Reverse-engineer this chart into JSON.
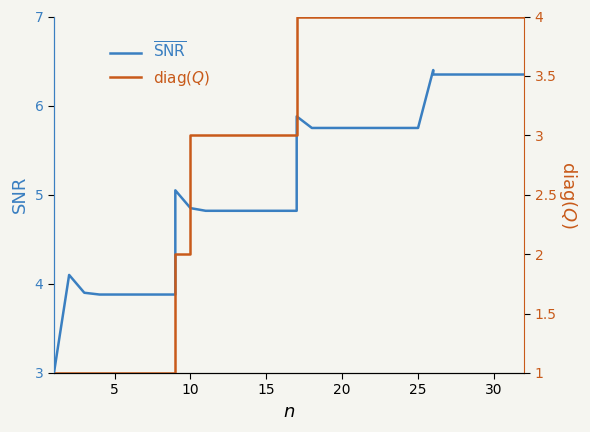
{
  "snr_x": [
    1,
    2,
    3,
    4,
    5,
    6,
    7,
    8,
    9,
    9,
    10,
    11,
    12,
    13,
    14,
    15,
    16,
    17,
    17,
    18,
    19,
    20,
    21,
    22,
    23,
    24,
    25,
    26,
    26,
    27,
    28,
    29,
    30,
    31,
    32
  ],
  "snr_y": [
    3.0,
    4.1,
    3.9,
    3.88,
    3.88,
    3.88,
    3.88,
    3.88,
    3.88,
    5.05,
    4.85,
    4.82,
    4.82,
    4.82,
    4.82,
    4.82,
    4.82,
    4.82,
    5.88,
    5.75,
    5.75,
    5.75,
    5.75,
    5.75,
    5.75,
    5.75,
    5.75,
    6.4,
    6.35,
    6.35,
    6.35,
    6.35,
    6.35,
    6.35,
    6.35
  ],
  "diagQ_x": [
    1,
    9,
    9,
    10,
    10,
    17,
    17,
    25,
    25,
    32
  ],
  "diagQ_y": [
    1.0,
    1.0,
    2.0,
    2.0,
    3.0,
    3.0,
    4.0,
    4.0,
    4.0,
    4.0
  ],
  "snr_color": "#3a7fc1",
  "diagQ_color": "#c85a1a",
  "xlabel": "$n$",
  "ylabel_left": "SNR",
  "ylabel_right": "$\\mathrm{diag}(Q)$",
  "legend_snr": "$\\overline{\\mathrm{SNR}}$",
  "legend_diagQ": "$\\mathrm{diag}(Q)$",
  "xlim": [
    1,
    32
  ],
  "ylim_left": [
    3,
    7
  ],
  "ylim_right": [
    1,
    4
  ],
  "yticks_left": [
    3,
    4,
    5,
    6,
    7
  ],
  "yticks_right": [
    1.0,
    1.5,
    2.0,
    2.5,
    3.0,
    3.5,
    4.0
  ],
  "xticks": [
    5,
    10,
    15,
    20,
    25,
    30
  ],
  "background_color": "#f5f5f0"
}
